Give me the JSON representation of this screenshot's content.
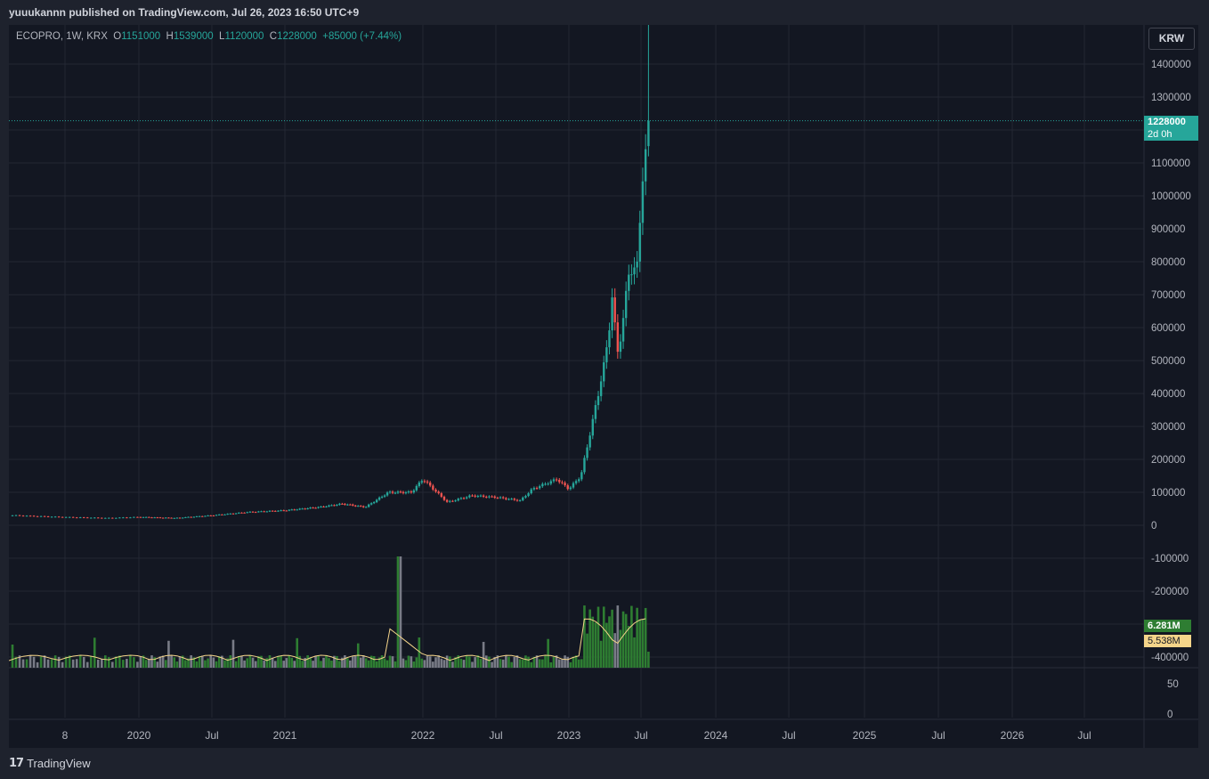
{
  "header": {
    "published_by": "yuuukannn published on TradingView.com, Jul 26, 2023 16:50 UTC+9"
  },
  "legend": {
    "symbol": "ECOPRO, 1W, KRX",
    "open_label": "O",
    "open": "1151000",
    "high_label": "H",
    "high": "1539000",
    "low_label": "L",
    "low": "1120000",
    "close_label": "C",
    "close": "1228000",
    "change": "+85000 (+7.44%)"
  },
  "currency_button": "KRW",
  "last_price_badge": {
    "price": "1228000",
    "countdown": "2d 0h"
  },
  "volume_badges": {
    "volume": "6.281M",
    "volume_ma": "5.538M"
  },
  "footer": {
    "brand": "TradingView"
  },
  "colors": {
    "background": "#131722",
    "up": "#26a69a",
    "down": "#ef5350",
    "volume_up": "#2e7d32",
    "volume_down": "#787b86",
    "volume_ma": "#f5d58a",
    "grid": "#232733"
  },
  "chart_data": {
    "type": "candlestick",
    "symbol": "ECOPRO",
    "interval": "1W",
    "exchange": "KRX",
    "currency": "KRW",
    "price_axis_ticks": [
      1400000,
      1300000,
      1200000,
      1100000,
      1000000,
      900000,
      800000,
      700000,
      600000,
      500000,
      400000,
      300000,
      200000,
      100000,
      0,
      -100000,
      -200000,
      -300000,
      -400000
    ],
    "price_axis_labels": [
      "1400000",
      "1300000",
      "1200000",
      "1100000",
      "1000000",
      "900000",
      "800000",
      "700000",
      "600000",
      "500000",
      "400000",
      "300000",
      "200000",
      "100000",
      "0",
      "-100000",
      "-200000",
      "-300000",
      "-400000"
    ],
    "lower_pane_ticks": [
      "50",
      "0"
    ],
    "time_axis_labels": [
      "8",
      "2020",
      "Jul",
      "2021",
      "2022",
      "Jul",
      "2023",
      "Jul",
      "2024",
      "Jul",
      "2025",
      "Jul",
      "2026",
      "Jul"
    ],
    "last_candle": {
      "open": 1151000,
      "high": 1539000,
      "low": 1120000,
      "close": 1228000
    },
    "price_series": {
      "x": [
        "2019-05",
        "2019-08",
        "2019-11",
        "2020-01",
        "2020-04",
        "2020-07",
        "2020-10",
        "2021-01",
        "2021-04",
        "2021-06",
        "2021-08",
        "2021-10",
        "2021-11",
        "2021-12",
        "2022-01",
        "2022-03",
        "2022-05",
        "2022-07",
        "2022-09",
        "2022-10",
        "2022-12",
        "2023-01",
        "2023-02",
        "2023-03",
        "2023-04",
        "2023-04-10",
        "2023-04-20",
        "2023-05",
        "2023-05-15",
        "2023-06",
        "2023-06-20",
        "2023-07",
        "2023-07-10",
        "2023-07-17",
        "2023-07-24"
      ],
      "close": [
        30000,
        25000,
        22000,
        25000,
        22000,
        30000,
        40000,
        45000,
        55000,
        65000,
        55000,
        100000,
        100000,
        100000,
        140000,
        70000,
        90000,
        85000,
        75000,
        110000,
        140000,
        110000,
        150000,
        320000,
        500000,
        580000,
        700000,
        520000,
        600000,
        780000,
        760000,
        1000000,
        1100000,
        1143000,
        1228000
      ]
    },
    "volume_peaks": {
      "x": [
        "2020-06",
        "2021-10",
        "2022-03",
        "2023-03",
        "2023-04",
        "2023-07"
      ],
      "volume": [
        "high",
        "spike",
        "high",
        "high",
        "high",
        "6.281M"
      ]
    },
    "volume_ma_last": "5.538M"
  }
}
